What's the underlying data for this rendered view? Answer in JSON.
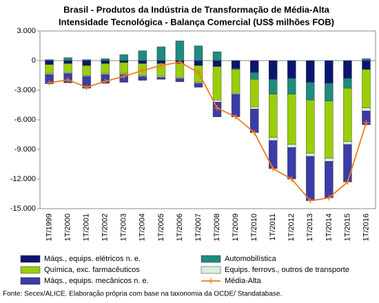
{
  "chart_data": {
    "type": "bar",
    "title": "Brasil - Produtos da Indústria de Transformação de Média-Alta",
    "subtitle": "Intensidade Tecnológica - Balança Comercial (US$ milhões FOB)",
    "source": "Fonte: Secex/ALICE. Elaboração própria com base na taxonomia da OCDE/ Standatabase.",
    "stacked": true,
    "categories": [
      "1T/1999",
      "1T/2000",
      "1T/2001",
      "1T/2002",
      "1T/2003",
      "1T/2004",
      "1T/2005",
      "1T/2006",
      "1T/2007",
      "1T/2008",
      "1T/2009",
      "1T/2010",
      "1T/2011",
      "1T/2012",
      "1T/2013",
      "1T/2014",
      "1T/2015",
      "1T/2016"
    ],
    "ylim": [
      -15000,
      3000
    ],
    "yticks": [
      {
        "value": -15000,
        "label": "-15.000"
      },
      {
        "value": -12000,
        "label": "-12.000"
      },
      {
        "value": -9000,
        "label": "-9.000"
      },
      {
        "value": -6000,
        "label": "-6.000"
      },
      {
        "value": -3000,
        "label": "-3.000"
      },
      0,
      {
        "value": 3000,
        "label": "3.000"
      }
    ],
    "series": [
      {
        "name": "Máqs., equips. elétricos n. e.",
        "color": "#0b1670",
        "values": [
          -400,
          -300,
          -500,
          -300,
          -200,
          -300,
          -300,
          -300,
          -500,
          -600,
          -800,
          -1200,
          -1900,
          -1800,
          -2200,
          -2300,
          -1800,
          -900
        ]
      },
      {
        "name": "Automobilística",
        "color": "#1f8a80",
        "values": [
          100,
          300,
          100,
          200,
          600,
          1000,
          1400,
          2000,
          1500,
          900,
          -100,
          -700,
          -1500,
          -1600,
          -1800,
          -1800,
          -1000,
          200
        ]
      },
      {
        "name": "Química, exc. farmacêuticos",
        "color": "#9acd0a",
        "values": [
          -900,
          -900,
          -1000,
          -1000,
          -1100,
          -1200,
          -1300,
          -1400,
          -1700,
          -3400,
          -2400,
          -2800,
          -4400,
          -5100,
          -5400,
          -5800,
          -5400,
          -3900
        ]
      },
      {
        "name": "Equips. ferrovs., outros de transporte",
        "color": "#d8f0dc",
        "values": [
          -100,
          -100,
          -100,
          -100,
          -100,
          -100,
          -100,
          -100,
          -100,
          -200,
          -100,
          -200,
          -300,
          -300,
          -300,
          -300,
          -300,
          -300
        ]
      },
      {
        "name": "Máqs., equips. mecânicos  n. e.",
        "color": "#3c3ca8",
        "values": [
          -950,
          -950,
          -1200,
          -900,
          -800,
          -400,
          -200,
          -350,
          -400,
          -1500,
          -2300,
          -2400,
          -2850,
          -3200,
          -4500,
          -3700,
          -3800,
          -1400
        ]
      },
      {
        "name": "Média-Alta",
        "type": "line",
        "color": "#f07a1e",
        "values": [
          -2250,
          -1950,
          -2700,
          -2100,
          -1600,
          -1000,
          -500,
          -150,
          -1200,
          -4800,
          -5700,
          -7300,
          -10950,
          -12000,
          -14200,
          -13900,
          -12300,
          -6300
        ]
      }
    ]
  }
}
